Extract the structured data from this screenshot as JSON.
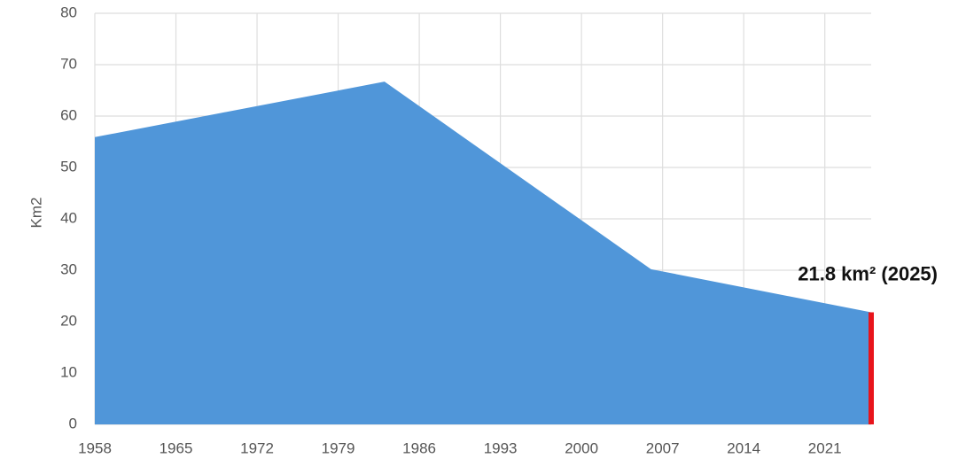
{
  "chart_data": {
    "type": "area",
    "y_label": "Km2",
    "x": [
      1958,
      1983,
      2006,
      2025
    ],
    "values": [
      55.9,
      66.7,
      30.2,
      21.8
    ],
    "color": "#5096d9",
    "highlight_color": "#e8141b",
    "annotation": "21.8 km² (2025)",
    "xlim": [
      1958,
      2025
    ],
    "xticks": [
      1958,
      1965,
      1972,
      1979,
      1986,
      1993,
      2000,
      2007,
      2014,
      2021
    ],
    "ylim": [
      0,
      80
    ],
    "yticks": [
      0,
      10,
      20,
      30,
      40,
      50,
      60,
      70,
      80
    ],
    "grid": true
  }
}
